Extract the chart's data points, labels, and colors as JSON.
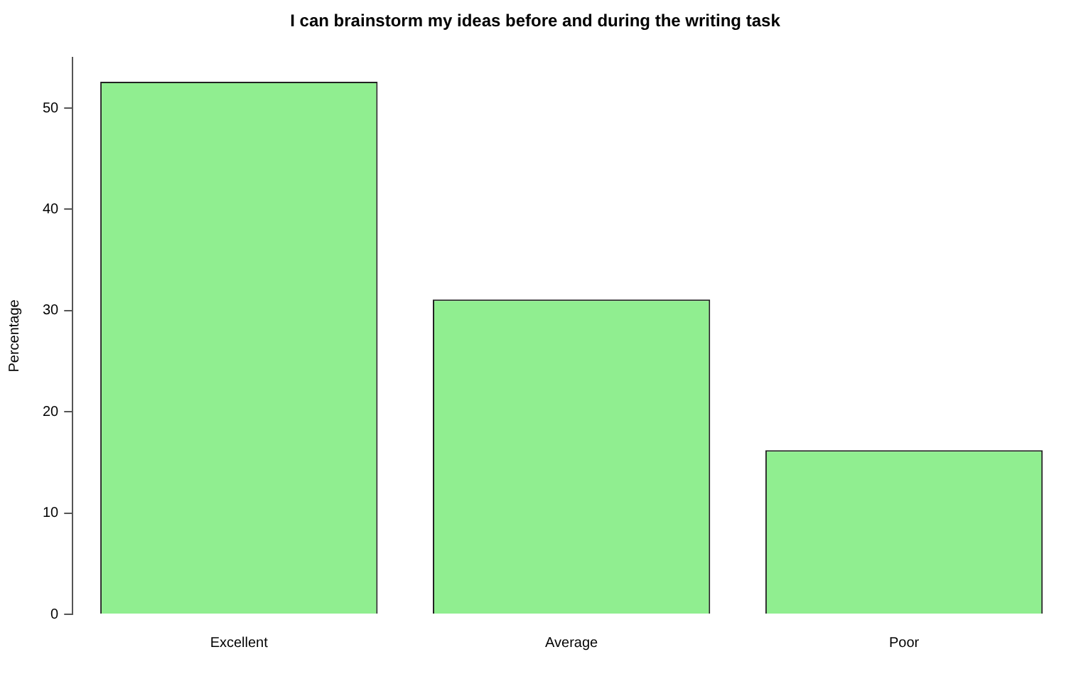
{
  "chart_data": {
    "type": "bar",
    "title": "I can brainstorm my ideas before and during the writing task",
    "ylabel": "Percentage",
    "categories": [
      "Excellent",
      "Average",
      "Poor"
    ],
    "values": [
      52.6,
      31.1,
      16.2
    ],
    "color": "#90ee90",
    "ylim": [
      0,
      55
    ],
    "yticks": [
      0,
      10,
      20,
      30,
      40,
      50
    ],
    "grid": false,
    "legend": false
  }
}
